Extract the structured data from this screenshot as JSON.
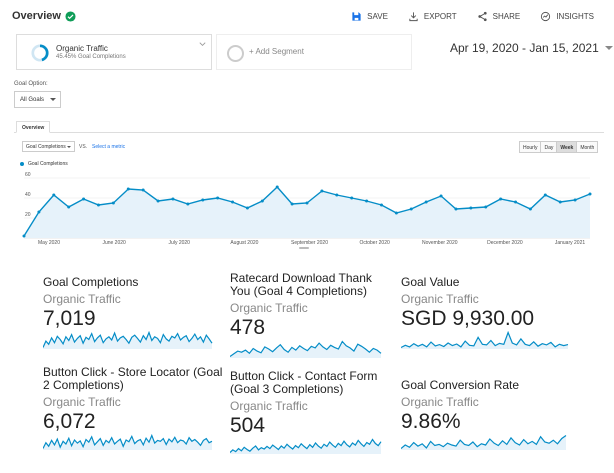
{
  "header": {
    "title": "Overview",
    "actions": [
      {
        "label": "SAVE",
        "icon": "save-icon"
      },
      {
        "label": "EXPORT",
        "icon": "export-icon"
      },
      {
        "label": "SHARE",
        "icon": "share-icon"
      },
      {
        "label": "INSIGHTS",
        "icon": "insights-icon"
      }
    ]
  },
  "segments": {
    "active": {
      "name": "Organic Traffic",
      "sub": "45.45% Goal Completions"
    },
    "add_label": "+ Add Segment"
  },
  "date_range": "Apr 19, 2020 - Jan 15, 2021",
  "goal_option": {
    "label": "Goal Option:",
    "value": "All Goals"
  },
  "tabs": {
    "overview": "Overview"
  },
  "chart_controls": {
    "metric": "Goal Completions",
    "vs": "VS.",
    "select_metric": "Select a metric",
    "granularity": [
      "Hourly",
      "Day",
      "Week",
      "Month"
    ],
    "active_granularity": "Week"
  },
  "colors": {
    "accent": "#058dc7",
    "fill": "#e6f2fa",
    "brand": "#1a73e8",
    "success": "#0f9d58"
  },
  "chart_data": {
    "type": "area",
    "series": [
      {
        "name": "Goal Completions",
        "values": [
          2,
          26,
          43,
          31,
          39,
          33,
          35,
          49,
          48,
          37,
          39,
          34,
          38,
          40,
          36,
          30,
          37,
          51,
          34,
          35,
          47,
          43,
          40,
          37,
          33,
          25,
          29,
          36,
          42,
          29,
          30,
          31,
          39,
          36,
          29,
          43,
          36,
          38,
          44
        ]
      }
    ],
    "yticks": [
      "60",
      "40",
      "20"
    ],
    "ylim": [
      0,
      60
    ],
    "xticks": [
      "May 2020",
      "June 2020",
      "July 2020",
      "August 2020",
      "September 2020",
      "October 2020",
      "November 2020",
      "December 2020",
      "January 2021"
    ],
    "legend": "top-left",
    "grid": true
  },
  "scorecards": [
    {
      "title": "Goal Completions",
      "segment": "Organic Traffic",
      "value": "7,019",
      "spark": [
        40,
        52,
        46,
        58,
        49,
        61,
        55,
        47,
        60,
        53,
        64,
        50,
        57,
        62,
        48,
        59,
        55,
        66,
        51,
        58,
        63,
        49,
        56,
        60,
        54,
        67,
        52,
        58,
        61,
        55,
        48,
        59,
        63,
        57,
        50,
        62,
        55,
        68,
        53,
        60,
        57,
        49,
        64,
        56,
        52,
        61,
        58,
        66,
        54,
        59,
        62,
        51,
        57,
        65,
        55,
        60,
        50,
        63,
        56,
        48
      ]
    },
    {
      "title": "Ratecard Download Thank You (Goal 4 Completions)",
      "segment": "Organic Traffic",
      "value": "478",
      "spark": [
        30,
        35,
        40,
        38,
        42,
        36,
        45,
        40,
        37,
        48,
        44,
        39,
        46,
        52,
        43,
        38,
        47,
        42,
        50,
        45,
        41,
        49,
        46,
        55,
        48,
        43,
        51,
        47,
        44,
        58,
        50,
        46,
        40,
        53,
        49,
        44,
        38,
        45,
        42,
        36
      ]
    },
    {
      "title": "Goal Value",
      "segment": "Organic Traffic",
      "value": "SGD 9,930.00",
      "spark": [
        28,
        35,
        30,
        40,
        32,
        38,
        30,
        45,
        33,
        37,
        31,
        42,
        34,
        39,
        30,
        48,
        35,
        33,
        60,
        38,
        36,
        50,
        34,
        41,
        38,
        75,
        42,
        36,
        55,
        38,
        34,
        46,
        32,
        40,
        36,
        44,
        30,
        38,
        34,
        37
      ]
    },
    {
      "title": "Button Click - Store Locator (Goal 2 Completions)",
      "segment": "Organic Traffic",
      "value": "6,072",
      "spark": [
        42,
        55,
        47,
        60,
        50,
        63,
        45,
        58,
        52,
        65,
        48,
        61,
        54,
        59,
        46,
        62,
        56,
        68,
        50,
        57,
        64,
        49,
        60,
        55,
        66,
        52,
        58,
        63,
        47,
        61,
        57,
        69,
        53,
        59,
        62,
        50,
        65,
        56,
        71,
        54,
        60,
        58,
        64,
        51,
        63,
        57,
        67,
        55,
        61,
        59,
        52,
        66,
        58,
        62,
        56,
        49,
        60,
        64,
        55,
        58
      ]
    },
    {
      "title": "Button Click - Contact Form (Goal 3 Completions)",
      "segment": "Organic Traffic",
      "value": "504",
      "spark": [
        38,
        44,
        40,
        47,
        42,
        50,
        45,
        41,
        48,
        53,
        44,
        49,
        46,
        52,
        47,
        55,
        50,
        45,
        53,
        48,
        57,
        51,
        46,
        54,
        49,
        58,
        52,
        47,
        56,
        50,
        60,
        53,
        48,
        57,
        52,
        62,
        55,
        50,
        59,
        54,
        64,
        56,
        51,
        60,
        55,
        66,
        58,
        52,
        61,
        57,
        68,
        59,
        54,
        63
      ]
    },
    {
      "title": "Goal Conversion Rate",
      "segment": "Organic Traffic",
      "value": "9.86%",
      "spark": [
        30,
        36,
        32,
        40,
        34,
        38,
        31,
        42,
        35,
        37,
        33,
        39,
        36,
        34,
        44,
        37,
        35,
        41,
        33,
        38,
        36,
        46,
        39,
        35,
        43,
        37,
        48,
        40,
        36,
        45,
        38,
        42,
        37,
        50,
        41,
        39,
        44,
        38,
        47,
        52
      ]
    }
  ]
}
